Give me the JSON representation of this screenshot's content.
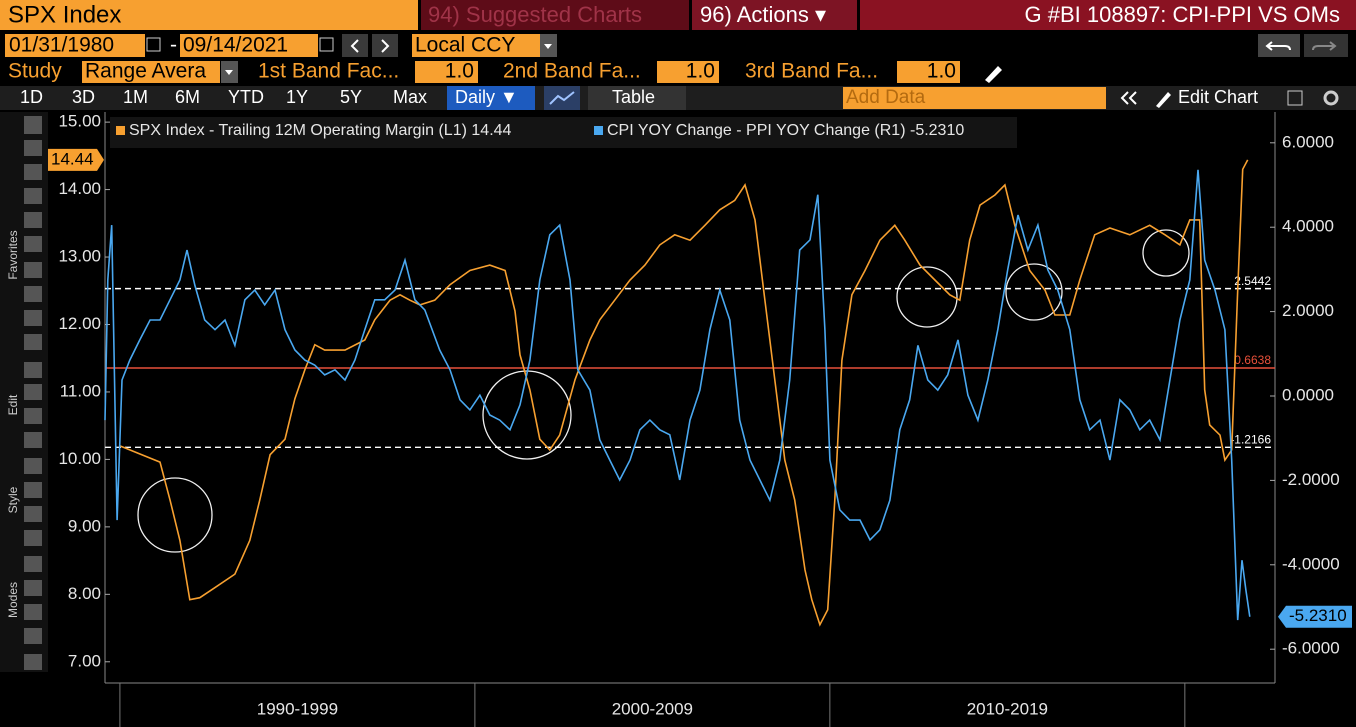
{
  "toolbar": {
    "security": "SPX Index",
    "suggested": "94) Suggested Charts",
    "actions": "96) Actions ▾",
    "function": "G #BI 108897: CPI-PPI VS OMs",
    "start_date": "01/31/1980",
    "date_sep": "-",
    "end_date": "09/14/2021",
    "currency": "Local CCY",
    "study_label": "Study",
    "study": "Range Avera",
    "band1_label": "1st Band Fac...",
    "band1": "1.0",
    "band2_label": "2nd Band Fa...",
    "band2": "1.0",
    "band3_label": "3rd Band Fa...",
    "band3": "1.0",
    "periods": [
      "1D",
      "3D",
      "1M",
      "6M",
      "YTD",
      "1Y",
      "5Y",
      "Max"
    ],
    "frequency": "Daily ▼",
    "table": "Table",
    "add_data": "Add Data",
    "edit_chart": "Edit Chart"
  },
  "sidebar": [
    "Favorites",
    "Edit",
    "Style",
    "Modes"
  ],
  "chart_data": {
    "type": "line",
    "legend": "top-left",
    "grid": false,
    "xlim": [
      1989.58,
      2022.54
    ],
    "x_bands": [
      {
        "label": "1990-1999",
        "from": 1990,
        "to": 2000
      },
      {
        "label": "2000-2009",
        "from": 2000,
        "to": 2010
      },
      {
        "label": "2010-2019",
        "from": 2010,
        "to": 2020
      }
    ],
    "ylim": [
      6.73,
      15.15
    ],
    "yticks": [
      {
        "value": 7,
        "label": "7.00"
      },
      {
        "value": 8,
        "label": "8.00"
      },
      {
        "value": 9,
        "label": "9.00"
      },
      {
        "value": 10,
        "label": "10.00"
      },
      {
        "value": 11,
        "label": "11.00"
      },
      {
        "value": 12,
        "label": "12.00"
      },
      {
        "value": 13,
        "label": "13.00"
      },
      {
        "value": 14,
        "label": "14.00"
      },
      {
        "value": 15,
        "label": "15.00"
      }
    ],
    "y2lim": [
      -6.73,
      6.73
    ],
    "y2ticks": [
      {
        "value": -6,
        "label": "-6.0000"
      },
      {
        "value": -4,
        "label": "-4.0000"
      },
      {
        "value": -2,
        "label": "-2.0000"
      },
      {
        "value": 0,
        "label": "0.0000"
      },
      {
        "value": 2,
        "label": "2.0000"
      },
      {
        "value": 4,
        "label": "4.0000"
      },
      {
        "value": 6,
        "label": "6.0000"
      }
    ],
    "reference_lines": [
      {
        "value": 2.5442,
        "color": "#ffffff",
        "style": "dashed"
      },
      {
        "value": 0.6638,
        "color": "#e8503a",
        "style": "solid"
      },
      {
        "value": -1.2166,
        "color": "#ffffff",
        "style": "dashed"
      }
    ],
    "series": [
      {
        "name": "SPX Index - Trailing 12M Operating Margin (L1)",
        "color": "#f7a030",
        "axis": "y",
        "x": [
          1990.0,
          1991.13,
          1991.41,
          1991.69,
          1991.97,
          1992.25,
          1992.68,
          1993.24,
          1993.66,
          1993.94,
          1994.23,
          1994.65,
          1994.93,
          1995.21,
          1995.49,
          1995.77,
          1996.34,
          1996.9,
          1997.18,
          1997.61,
          1997.89,
          1998.17,
          1998.45,
          1998.87,
          1999.3,
          1999.86,
          2000.42,
          2000.85,
          2001.13,
          2001.27,
          2001.55,
          2001.83,
          2002.11,
          2002.39,
          2002.82,
          2003.24,
          2003.52,
          2003.94,
          2004.37,
          2004.79,
          2005.21,
          2005.63,
          2006.06,
          2006.48,
          2006.9,
          2007.32,
          2007.61,
          2007.89,
          2008.17,
          2008.45,
          2008.73,
          2009.01,
          2009.3,
          2009.49,
          2009.72,
          2009.94,
          2010.14,
          2010.34,
          2010.62,
          2010.99,
          2011.41,
          2011.83,
          2012.11,
          2012.54,
          2012.96,
          2013.38,
          2013.66,
          2013.94,
          2014.23,
          2014.65,
          2014.93,
          2015.21,
          2015.63,
          2016.06,
          2016.34,
          2016.76,
          2017.04,
          2017.46,
          2017.89,
          2018.45,
          2019.01,
          2019.44,
          2019.86,
          2020.14,
          2020.42,
          2020.56,
          2020.7,
          2020.99,
          2021.13,
          2021.32,
          2021.49,
          2021.63,
          2021.77
        ],
        "values": [
          10.2,
          9.96,
          9.4,
          8.8,
          7.92,
          7.95,
          8.1,
          8.3,
          8.8,
          9.4,
          10.07,
          10.3,
          10.9,
          11.33,
          11.7,
          11.62,
          11.62,
          11.77,
          12.07,
          12.36,
          12.44,
          12.36,
          12.29,
          12.36,
          12.59,
          12.8,
          12.88,
          12.8,
          12.2,
          11.55,
          11.03,
          10.3,
          10.14,
          10.36,
          11.18,
          11.77,
          12.07,
          12.36,
          12.66,
          12.88,
          13.18,
          13.33,
          13.25,
          13.47,
          13.7,
          13.84,
          14.07,
          13.55,
          12.36,
          11.18,
          9.99,
          9.4,
          8.36,
          7.92,
          7.55,
          7.77,
          9.4,
          11.47,
          12.44,
          12.8,
          13.25,
          13.47,
          13.25,
          12.88,
          12.66,
          12.44,
          12.36,
          13.25,
          13.77,
          13.92,
          14.07,
          13.47,
          12.8,
          12.51,
          12.14,
          12.14,
          12.66,
          13.33,
          13.43,
          13.33,
          13.47,
          13.33,
          13.18,
          13.55,
          13.55,
          11.03,
          10.51,
          10.36,
          9.99,
          10.14,
          12.51,
          14.3,
          14.44
        ]
      },
      {
        "name": "CPI YOY Change - PPI YOY Change (R1)",
        "color": "#4aa8f0",
        "axis": "y2",
        "last_value_label": "-5.2310",
        "x": [
          1989.58,
          1989.66,
          1989.77,
          1989.92,
          1990.06,
          1990.28,
          1990.56,
          1990.85,
          1991.13,
          1991.41,
          1991.69,
          1991.89,
          1992.11,
          1992.39,
          1992.68,
          1992.96,
          1993.24,
          1993.52,
          1993.8,
          1994.08,
          1994.37,
          1994.65,
          1994.93,
          1995.21,
          1995.49,
          1995.77,
          1996.06,
          1996.34,
          1996.62,
          1996.9,
          1997.18,
          1997.46,
          1997.75,
          1998.03,
          1998.31,
          1998.59,
          1999.01,
          1999.3,
          1999.58,
          1999.86,
          2000.14,
          2000.42,
          2000.7,
          2000.99,
          2001.27,
          2001.55,
          2001.83,
          2002.11,
          2002.39,
          2002.68,
          2002.9,
          2003.24,
          2003.52,
          2003.8,
          2004.08,
          2004.37,
          2004.65,
          2004.93,
          2005.21,
          2005.49,
          2005.77,
          2006.06,
          2006.34,
          2006.62,
          2006.9,
          2007.18,
          2007.46,
          2007.75,
          2008.03,
          2008.31,
          2008.59,
          2008.87,
          2009.15,
          2009.44,
          2009.66,
          2009.86,
          2010.0,
          2010.28,
          2010.56,
          2010.85,
          2011.13,
          2011.41,
          2011.69,
          2011.97,
          2012.25,
          2012.48,
          2012.76,
          2013.04,
          2013.32,
          2013.61,
          2013.89,
          2014.17,
          2014.45,
          2014.73,
          2015.01,
          2015.3,
          2015.58,
          2015.86,
          2016.14,
          2016.42,
          2016.76,
          2017.04,
          2017.32,
          2017.61,
          2017.89,
          2018.17,
          2018.45,
          2018.73,
          2019.01,
          2019.3,
          2019.58,
          2019.86,
          2020.14,
          2020.37,
          2020.56,
          2020.85,
          2021.13,
          2021.32,
          2021.49,
          2021.61,
          2021.72,
          2021.83
        ],
        "values": [
          -0.57,
          2.75,
          4.05,
          -2.94,
          0.38,
          0.85,
          1.33,
          1.8,
          1.8,
          2.28,
          2.75,
          3.46,
          2.63,
          1.8,
          1.57,
          1.8,
          1.2,
          2.28,
          2.51,
          2.16,
          2.51,
          1.57,
          1.09,
          0.85,
          0.73,
          0.5,
          0.62,
          0.38,
          0.85,
          1.57,
          2.28,
          2.28,
          2.51,
          3.22,
          2.28,
          2.04,
          1.09,
          0.62,
          -0.09,
          -0.33,
          0.02,
          -0.45,
          -0.57,
          -0.8,
          -0.21,
          0.85,
          2.75,
          3.82,
          4.05,
          2.75,
          0.62,
          0.14,
          -1.04,
          -1.52,
          -1.99,
          -1.52,
          -0.8,
          -0.57,
          -0.8,
          -0.92,
          -1.99,
          -0.57,
          0.14,
          1.57,
          2.51,
          1.8,
          -0.57,
          -1.52,
          -1.99,
          -2.47,
          -1.52,
          0.38,
          3.46,
          3.7,
          4.77,
          1.57,
          -1.52,
          -2.7,
          -2.94,
          -2.94,
          -3.41,
          -3.17,
          -2.47,
          -0.8,
          -0.09,
          1.2,
          0.38,
          0.14,
          0.5,
          1.33,
          0.02,
          -0.57,
          0.38,
          1.57,
          2.99,
          4.29,
          3.46,
          4.05,
          2.99,
          2.51,
          1.57,
          -0.09,
          -0.8,
          -0.57,
          -1.52,
          -0.09,
          -0.33,
          -0.8,
          -0.57,
          -1.04,
          0.38,
          1.8,
          2.75,
          5.36,
          3.22,
          2.51,
          1.57,
          -1.52,
          -5.31,
          -3.89,
          -4.6,
          -5.231
        ]
      }
    ]
  }
}
